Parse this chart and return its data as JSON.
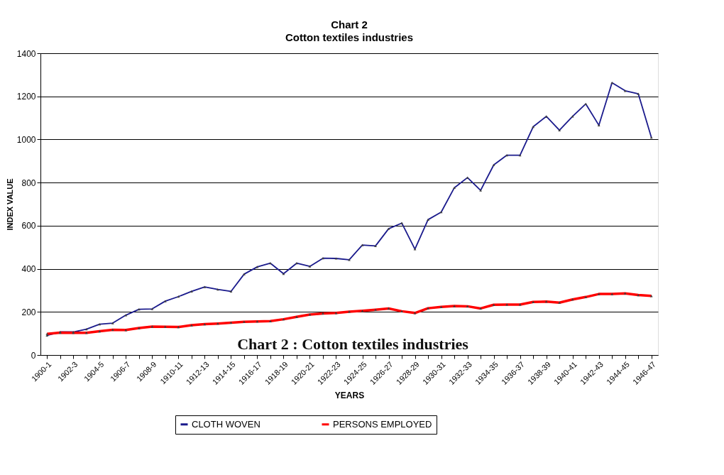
{
  "chart_data": {
    "type": "line",
    "title": "Chart 2",
    "subtitle": "Cotton textiles industries",
    "xlabel": "YEARS",
    "ylabel": "INDEX VALUE",
    "categories": [
      "1900-1",
      null,
      "1902-3",
      null,
      "1904-5",
      null,
      "1906-7",
      null,
      "1908-9",
      null,
      "1910-11",
      null,
      "1912-13",
      null,
      "1914-15",
      null,
      "1916-17",
      null,
      "1918-19",
      null,
      "1920-21",
      null,
      "1922-23",
      null,
      "1924-25",
      null,
      "1926-27",
      null,
      "1928-29",
      null,
      "1930-31",
      null,
      "1932-33",
      null,
      "1934-35",
      null,
      "1936-37",
      null,
      "1938-39",
      null,
      "1940-41",
      null,
      "1942-43",
      null,
      "1944-45",
      null,
      "1946-47"
    ],
    "series": [
      {
        "name": "CLOTH WOVEN",
        "color": "#1a1a8c",
        "values": [
          91,
          107,
          107,
          120,
          143,
          148,
          185,
          212,
          214,
          250,
          271,
          295,
          316,
          304,
          295,
          375,
          409,
          426,
          377,
          426,
          411,
          449,
          448,
          442,
          510,
          506,
          586,
          612,
          491,
          628,
          663,
          776,
          823,
          764,
          882,
          927,
          927,
          1059,
          1107,
          1043,
          1107,
          1165,
          1066,
          1263,
          1226,
          1212,
          1009
        ]
      },
      {
        "name": "PERSONS EMPLOYED",
        "color": "#ff0000",
        "values": [
          98,
          104,
          103,
          103,
          110,
          117,
          116,
          125,
          132,
          131,
          130,
          138,
          143,
          146,
          150,
          154,
          156,
          157,
          166,
          177,
          188,
          193,
          195,
          201,
          205,
          210,
          216,
          203,
          195,
          217,
          223,
          227,
          226,
          216,
          233,
          234,
          234,
          246,
          248,
          243,
          258,
          269,
          283,
          283,
          286,
          278,
          274
        ]
      }
    ],
    "ylim": [
      0,
      1400
    ],
    "yticks": [
      0,
      200,
      400,
      600,
      800,
      1000,
      1200,
      1400
    ],
    "grid": "y",
    "legend": "bottom",
    "marker": "triangle",
    "line_style": "solid",
    "annotations": [
      "Chart 2 : Cotton textiles industries"
    ]
  }
}
